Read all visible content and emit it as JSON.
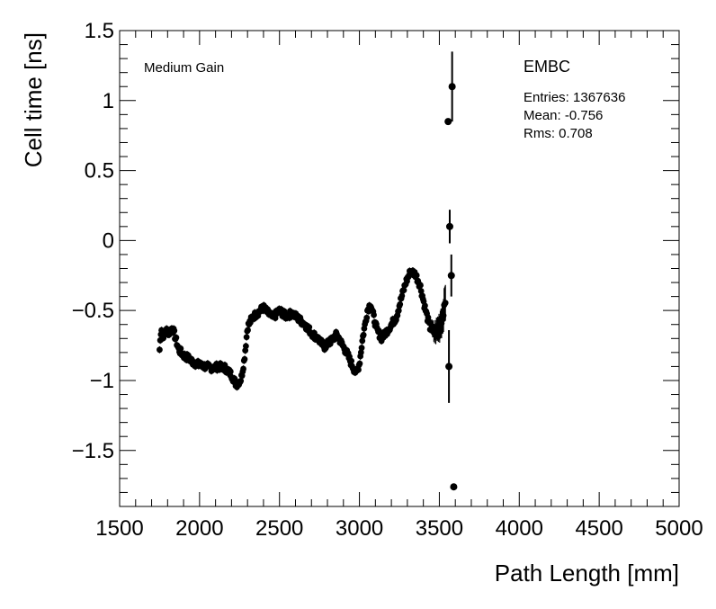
{
  "chart_data": {
    "type": "scatter",
    "title": "",
    "xlabel": "Path Length [mm]",
    "ylabel": "Cell time [ns]",
    "xlim": [
      1500,
      5000
    ],
    "ylim": [
      -1.9,
      1.5
    ],
    "x_ticks": [
      1500,
      2000,
      2500,
      3000,
      3500,
      4000,
      4500,
      5000
    ],
    "x_tick_labels": [
      "1500",
      "2000",
      "2500",
      "3000",
      "3500",
      "4000",
      "4500",
      "5000"
    ],
    "y_ticks": [
      -1.5,
      -1,
      -0.5,
      0,
      0.5,
      1,
      1.5
    ],
    "y_tick_labels": [
      "−1.5",
      "−1",
      "−0.5",
      "0",
      "0.5",
      "1",
      "1.5"
    ],
    "grid": false,
    "annotations": {
      "gain_label": "Medium Gain",
      "stats_title": "EMBC",
      "stats_entries": "Entries: 1367636",
      "stats_mean": "Mean: -0.756",
      "stats_rms": "Rms: 0.708"
    },
    "series": [
      {
        "style": "points-with-error-bars",
        "color": "#000000",
        "profile": [
          [
            1750,
            -0.78
          ],
          [
            1760,
            -0.62
          ],
          [
            1775,
            -0.68
          ],
          [
            1790,
            -0.64
          ],
          [
            1810,
            -0.66
          ],
          [
            1830,
            -0.62
          ],
          [
            1850,
            -0.7
          ],
          [
            1870,
            -0.78
          ],
          [
            1900,
            -0.82
          ],
          [
            1930,
            -0.84
          ],
          [
            1960,
            -0.87
          ],
          [
            2000,
            -0.89
          ],
          [
            2040,
            -0.9
          ],
          [
            2080,
            -0.91
          ],
          [
            2120,
            -0.9
          ],
          [
            2160,
            -0.91
          ],
          [
            2200,
            -0.96
          ],
          [
            2230,
            -1.03
          ],
          [
            2260,
            -0.99
          ],
          [
            2280,
            -0.85
          ],
          [
            2300,
            -0.62
          ],
          [
            2330,
            -0.55
          ],
          [
            2360,
            -0.52
          ],
          [
            2400,
            -0.48
          ],
          [
            2430,
            -0.52
          ],
          [
            2460,
            -0.55
          ],
          [
            2500,
            -0.5
          ],
          [
            2540,
            -0.54
          ],
          [
            2580,
            -0.52
          ],
          [
            2620,
            -0.56
          ],
          [
            2660,
            -0.6
          ],
          [
            2700,
            -0.66
          ],
          [
            2740,
            -0.7
          ],
          [
            2780,
            -0.76
          ],
          [
            2820,
            -0.72
          ],
          [
            2860,
            -0.67
          ],
          [
            2890,
            -0.74
          ],
          [
            2920,
            -0.8
          ],
          [
            2950,
            -0.88
          ],
          [
            2980,
            -0.95
          ],
          [
            3000,
            -0.88
          ],
          [
            3020,
            -0.7
          ],
          [
            3050,
            -0.5
          ],
          [
            3070,
            -0.45
          ],
          [
            3090,
            -0.55
          ],
          [
            3110,
            -0.64
          ],
          [
            3140,
            -0.7
          ],
          [
            3170,
            -0.65
          ],
          [
            3200,
            -0.6
          ],
          [
            3230,
            -0.55
          ],
          [
            3260,
            -0.42
          ],
          [
            3290,
            -0.3
          ],
          [
            3320,
            -0.22
          ],
          [
            3350,
            -0.24
          ],
          [
            3380,
            -0.32
          ],
          [
            3410,
            -0.48
          ],
          [
            3440,
            -0.62
          ],
          [
            3470,
            -0.66
          ],
          [
            3500,
            -0.62
          ],
          [
            3520,
            -0.55
          ],
          [
            3540,
            -0.42
          ]
        ],
        "outliers": [
          {
            "x": 3555,
            "y": 0.85,
            "err": 0.02
          },
          {
            "x": 3565,
            "y": 0.1,
            "err": 0.12
          },
          {
            "x": 3575,
            "y": -0.25,
            "err": 0.15
          },
          {
            "x": 3580,
            "y": 1.1,
            "err": 0.25
          },
          {
            "x": 3560,
            "y": -0.9,
            "err": 0.26
          },
          {
            "x": 3590,
            "y": -1.76,
            "err": 0.02
          }
        ]
      }
    ]
  }
}
